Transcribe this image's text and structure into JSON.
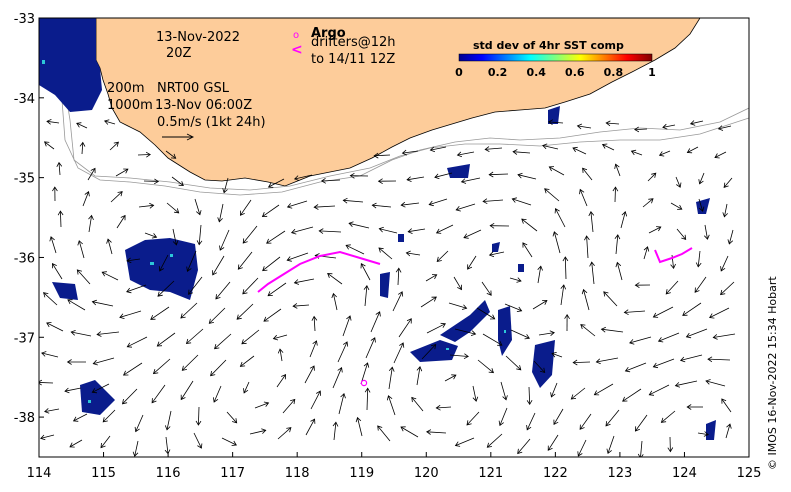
{
  "map": {
    "lon_ticks": [
      "114",
      "115",
      "116",
      "117",
      "118",
      "119",
      "120",
      "121",
      "122",
      "123",
      "124",
      "125"
    ],
    "lat_ticks": [
      "-33",
      "-34",
      "-35",
      "-36",
      "-37",
      "-38"
    ],
    "lon_range": [
      114,
      125
    ],
    "lat_range": [
      -38.5,
      -33
    ]
  },
  "annotations": {
    "date": "13-Nov-2022",
    "time": "20Z",
    "depth_200": "200m",
    "depth_1000": "1000m",
    "product": "NRT00 GSL",
    "product_time": "13-Nov 06:00Z",
    "vector_scale": "0.5m/s (1kt 24h)"
  },
  "argo": {
    "symbol": "o",
    "label": "Argo",
    "drifter_symbol": "<",
    "drifter_label_1": "drifters@12h",
    "drifter_label_2": "to 14/11 12Z",
    "color": "#ff00ff"
  },
  "colorbar": {
    "title": "std dev of 4hr SST comp",
    "ticks": [
      "0",
      "0.2",
      "0.4",
      "0.6",
      "0.8",
      "1"
    ],
    "range": [
      0,
      1
    ]
  },
  "credit": "© IMOS 16-Nov-2022 15:34 Hobart",
  "colors": {
    "land": "#fdcc9a",
    "sst_low": "#0a1c8c",
    "arrow": "#000000",
    "isobath": "#999999"
  }
}
